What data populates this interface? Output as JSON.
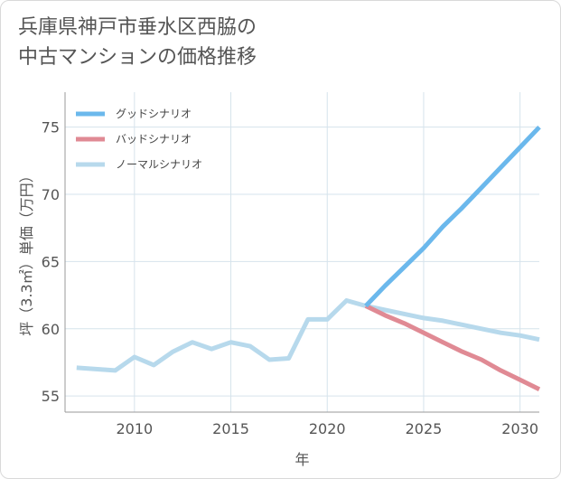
{
  "title_lines": [
    "兵庫県神戸市垂水区西脇の",
    "中古マンションの価格推移"
  ],
  "chart_data": {
    "type": "line",
    "title": "兵庫県神戸市垂水区西脇の中古マンションの価格推移",
    "xlabel": "年",
    "ylabel": "坪（3.3㎡）単価（万円）",
    "xlim": [
      2006.4,
      2031.0
    ],
    "ylim": [
      53.8,
      77.6
    ],
    "xticks": [
      2010,
      2015,
      2020,
      2025,
      2030
    ],
    "yticks": [
      55,
      60,
      65,
      70,
      75
    ],
    "grid": true,
    "legend_position": "top-left",
    "series": [
      {
        "name": "グッドシナリオ",
        "color": "#6bb8ec",
        "x": [
          2022,
          2023,
          2024,
          2025,
          2026,
          2027,
          2028,
          2029,
          2030,
          2031
        ],
        "y": [
          61.7,
          63.2,
          64.6,
          66.0,
          67.6,
          69.0,
          70.5,
          72.0,
          73.5,
          75.0
        ]
      },
      {
        "name": "バッドシナリオ",
        "color": "#e08a94",
        "x": [
          2022,
          2023,
          2024,
          2025,
          2026,
          2027,
          2028,
          2029,
          2030,
          2031
        ],
        "y": [
          61.7,
          61.0,
          60.4,
          59.7,
          59.0,
          58.3,
          57.7,
          56.9,
          56.2,
          55.5
        ]
      },
      {
        "name": "ノーマルシナリオ",
        "color": "#b7d9ec",
        "x": [
          2007,
          2008,
          2009,
          2010,
          2011,
          2012,
          2013,
          2014,
          2015,
          2016,
          2017,
          2018,
          2019,
          2020,
          2021,
          2022,
          2023,
          2024,
          2025,
          2026,
          2027,
          2028,
          2029,
          2030,
          2031
        ],
        "y": [
          57.1,
          57.0,
          56.9,
          57.9,
          57.3,
          58.3,
          59.0,
          58.5,
          59.0,
          58.7,
          57.7,
          57.8,
          60.7,
          60.7,
          62.1,
          61.7,
          61.4,
          61.1,
          60.8,
          60.6,
          60.3,
          60.0,
          59.7,
          59.5,
          59.2
        ]
      }
    ]
  }
}
